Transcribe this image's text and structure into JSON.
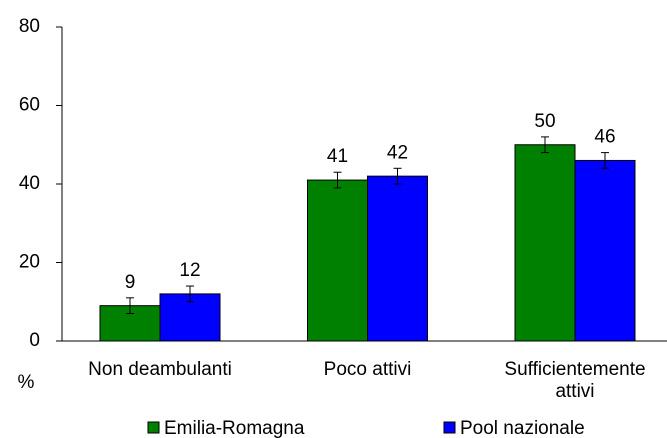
{
  "chart_data": {
    "type": "bar",
    "y_label": "%",
    "categories": [
      "Non deambulanti",
      "Poco attivi",
      "Sufficientemente attivi"
    ],
    "series": [
      {
        "name": "Emilia-Romagna",
        "color": "#008000",
        "values": [
          9,
          41,
          50
        ],
        "errors": [
          2,
          2,
          2
        ]
      },
      {
        "name": "Pool nazionale",
        "color": "#0000ff",
        "values": [
          12,
          42,
          46
        ],
        "errors": [
          2,
          2,
          2
        ]
      }
    ],
    "ylim": [
      0,
      80
    ],
    "yticks": [
      0,
      20,
      40,
      60,
      80
    ],
    "grid": false,
    "legend": "bottom"
  }
}
